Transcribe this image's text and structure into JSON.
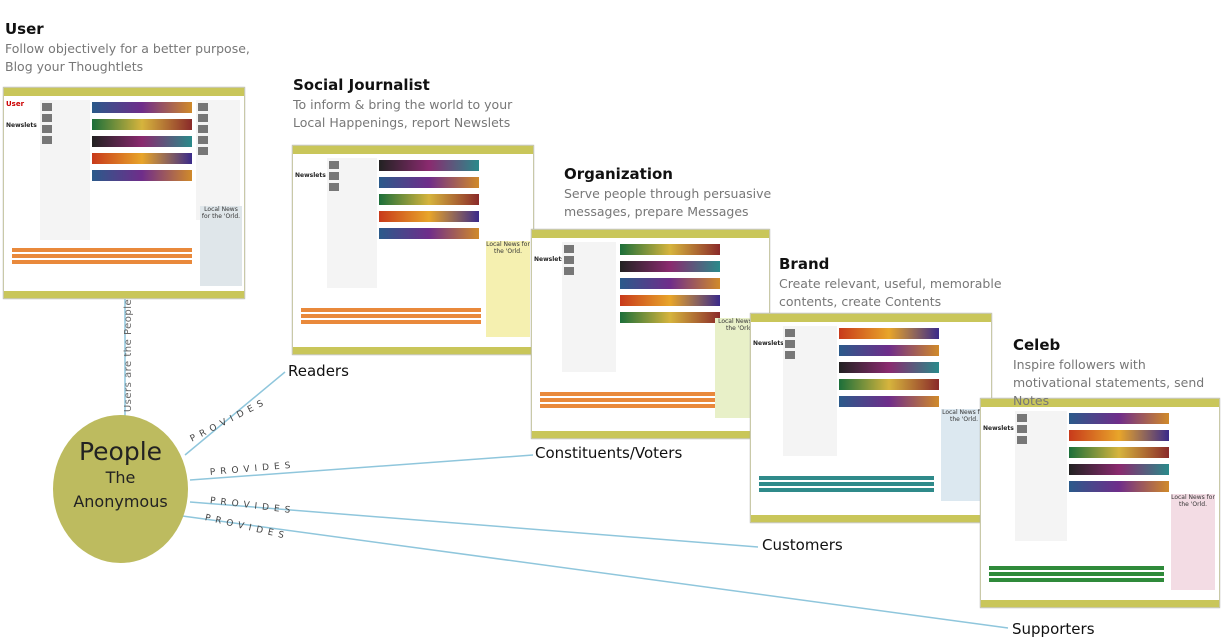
{
  "roles": [
    {
      "title": "User",
      "desc": "Follow objectively for a better purpose, Blog your Thoughtlets"
    },
    {
      "title": "Social Journalist",
      "desc": "To inform & bring the world to your Local Happenings, report Newslets"
    },
    {
      "title": "Organization",
      "desc": "Serve people through persuasive messages, prepare Messages"
    },
    {
      "title": "Brand",
      "desc": "Create relevant, useful, memorable contents, create Contents"
    },
    {
      "title": "Celeb",
      "desc": "Inspire followers with motivational statements, send Notes"
    }
  ],
  "people": {
    "title": "People",
    "line2": "The",
    "line3": "Anonymous",
    "vertical_label": "Users are the People"
  },
  "provides_label": "PROVIDES",
  "targets": {
    "readers": "Readers",
    "voters": "Constituents/Voters",
    "customers": "Customers",
    "supporters": "Supporters"
  },
  "mini_screens": {
    "user_logo": "User",
    "brand_name": "Newslets",
    "ad_text": "Local News for the 'Orld.",
    "ad_url": "NEWSLETS.COM"
  },
  "colors": {
    "people_circle": "#bdbb5f",
    "connector_line": "#8fc6dc",
    "bar": "#c9c65a"
  }
}
